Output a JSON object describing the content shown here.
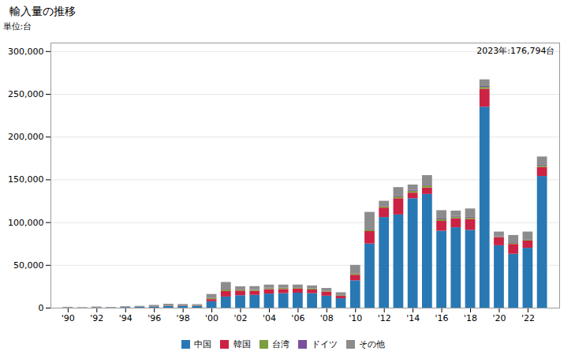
{
  "chart_data": {
    "type": "bar",
    "stacked": true,
    "title": "輸入量の推移",
    "ylabel": "単位:台",
    "annotation": "2023年:176,794台",
    "x": [
      1990,
      1991,
      1992,
      1993,
      1994,
      1995,
      1996,
      1997,
      1998,
      1999,
      2000,
      2001,
      2002,
      2003,
      2004,
      2005,
      2006,
      2007,
      2008,
      2009,
      2010,
      2011,
      2012,
      2013,
      2014,
      2015,
      2016,
      2017,
      2018,
      2019,
      2020,
      2021,
      2022,
      2023
    ],
    "series": [
      {
        "name": "中国",
        "color": "#2878b4",
        "values": [
          400,
          200,
          500,
          300,
          700,
          900,
          1300,
          1800,
          2000,
          2200,
          7500,
          13000,
          14500,
          15000,
          16500,
          17000,
          17500,
          17000,
          14000,
          11000,
          32000,
          75000,
          106000,
          109000,
          128000,
          133000,
          90000,
          94000,
          91000,
          235000,
          73000,
          63000,
          70000,
          154000
        ]
      },
      {
        "name": "韓国",
        "color": "#cc2244",
        "values": [
          100,
          100,
          150,
          100,
          150,
          200,
          300,
          400,
          400,
          400,
          2500,
          6500,
          5500,
          4800,
          5000,
          4800,
          4800,
          4200,
          4800,
          2800,
          6500,
          14500,
          11000,
          19000,
          6500,
          7500,
          11500,
          10500,
          12500,
          21000,
          9500,
          11500,
          8500,
          10500
        ]
      },
      {
        "name": "台湾",
        "color": "#7b9e3e",
        "values": [
          80,
          50,
          80,
          50,
          80,
          100,
          150,
          200,
          150,
          200,
          1200,
          1800,
          1200,
          1200,
          1200,
          1200,
          1200,
          1000,
          1000,
          700,
          1200,
          1800,
          1800,
          2200,
          2200,
          2800,
          1800,
          1800,
          1800,
          2200,
          900,
          1300,
          900,
          1800
        ]
      },
      {
        "name": "ドイツ",
        "color": "#7a4f9e",
        "values": [
          80,
          40,
          80,
          80,
          80,
          150,
          150,
          200,
          150,
          150,
          400,
          700,
          600,
          500,
          600,
          500,
          500,
          400,
          400,
          350,
          500,
          700,
          900,
          1300,
          1300,
          1300,
          900,
          1100,
          900,
          1100,
          700,
          700,
          600,
          700
        ]
      },
      {
        "name": "その他",
        "color": "#8c8c8c",
        "values": [
          340,
          210,
          490,
          370,
          690,
          750,
          1300,
          1900,
          1500,
          1150,
          4400,
          8000,
          3200,
          3700,
          3700,
          3500,
          3000,
          3400,
          2800,
          3150,
          9800,
          20000,
          5300,
          9500,
          6000,
          10400,
          9800,
          6100,
          9800,
          7700,
          4900,
          8490,
          9000,
          9794
        ]
      }
    ],
    "xlim": [
      1988.8,
      2024.2
    ],
    "xticks": [
      {
        "value": 1990,
        "label": "'90"
      },
      {
        "value": 1992,
        "label": "'92"
      },
      {
        "value": 1994,
        "label": "'94"
      },
      {
        "value": 1996,
        "label": "'96"
      },
      {
        "value": 1998,
        "label": "'98"
      },
      {
        "value": 2000,
        "label": "'00"
      },
      {
        "value": 2002,
        "label": "'02"
      },
      {
        "value": 2004,
        "label": "'04"
      },
      {
        "value": 2006,
        "label": "'06"
      },
      {
        "value": 2008,
        "label": "'08"
      },
      {
        "value": 2010,
        "label": "'10"
      },
      {
        "value": 2012,
        "label": "'12"
      },
      {
        "value": 2014,
        "label": "'14"
      },
      {
        "value": 2016,
        "label": "'16"
      },
      {
        "value": 2018,
        "label": "'18"
      },
      {
        "value": 2020,
        "label": "'20"
      },
      {
        "value": 2022,
        "label": "'22"
      }
    ],
    "ylim": [
      0,
      310000
    ],
    "yticks": [
      0,
      {
        "value": 50000,
        "label": "50,000"
      },
      {
        "value": 100000,
        "label": "100,000"
      },
      {
        "value": 150000,
        "label": "150,000"
      },
      {
        "value": 200000,
        "label": "200,000"
      },
      {
        "value": 250000,
        "label": "250,000"
      },
      {
        "value": 300000,
        "label": "300,000"
      }
    ],
    "grid": true,
    "legend": "bottom"
  }
}
